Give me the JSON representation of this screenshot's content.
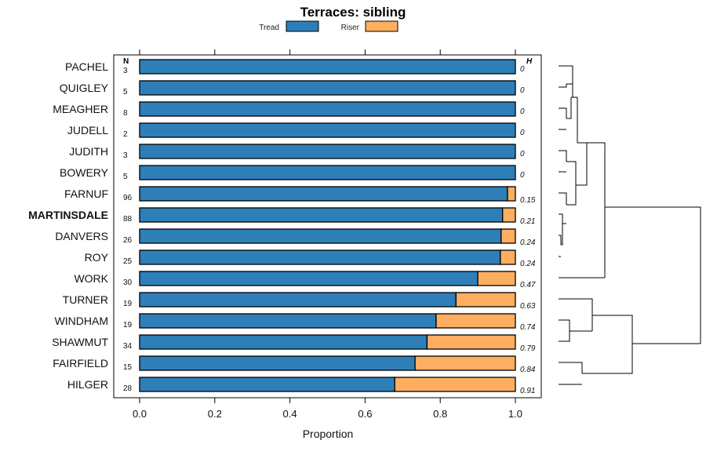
{
  "chart_data": {
    "type": "bar",
    "stacked": true,
    "orientation": "horizontal",
    "title": "Terraces: sibling",
    "xlabel": "Proportion",
    "xlim": [
      0,
      1
    ],
    "xticks": [
      "0.0",
      "0.2",
      "0.4",
      "0.6",
      "0.8",
      "1.0"
    ],
    "legend": [
      {
        "name": "Tread",
        "color": "#2e7fb8"
      },
      {
        "name": "Riser",
        "color": "#fdae61"
      }
    ],
    "n_header": "N",
    "h_header": "H",
    "categories": [
      "PACHEL",
      "QUIGLEY",
      "MEAGHER",
      "JUDELL",
      "JUDITH",
      "BOWERY",
      "FARNUF",
      "MARTINSDALE",
      "DANVERS",
      "ROY",
      "WORK",
      "TURNER",
      "WINDHAM",
      "SHAWMUT",
      "FAIRFIELD",
      "HILGER"
    ],
    "highlight": "MARTINSDALE",
    "n": [
      "3",
      "5",
      "8",
      "2",
      "3",
      "5",
      "96",
      "88",
      "26",
      "25",
      "30",
      "19",
      "19",
      "34",
      "15",
      "28"
    ],
    "h": [
      "0",
      "0",
      "0",
      "0",
      "0",
      "0",
      "0.15",
      "0.21",
      "0.24",
      "0.24",
      "0.47",
      "0.63",
      "0.74",
      "0.79",
      "0.84",
      "0.91"
    ],
    "series": [
      {
        "name": "Tread",
        "values": [
          1.0,
          1.0,
          1.0,
          1.0,
          1.0,
          1.0,
          0.979,
          0.966,
          0.962,
          0.96,
          0.9,
          0.842,
          0.789,
          0.765,
          0.733,
          0.679
        ]
      },
      {
        "name": "Riser",
        "values": [
          0.0,
          0.0,
          0.0,
          0.0,
          0.0,
          0.0,
          0.021,
          0.034,
          0.038,
          0.04,
          0.1,
          0.158,
          0.211,
          0.235,
          0.267,
          0.321
        ]
      }
    ]
  }
}
